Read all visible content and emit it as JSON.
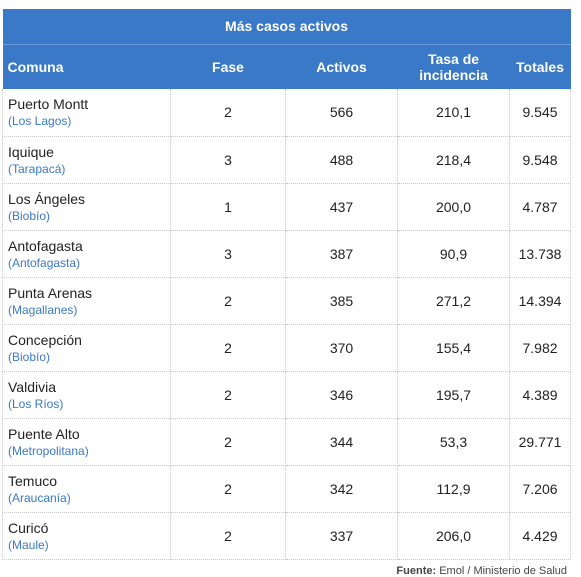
{
  "table": {
    "title": "Más casos activos",
    "headers": {
      "comuna": "Comuna",
      "fase": "Fase",
      "activos": "Activos",
      "tasa_line1": "Tasa de",
      "tasa_line2": "incidencia",
      "totales": "Totales"
    },
    "rows": [
      {
        "comuna": "Puerto Montt",
        "region": "(Los Lagos)",
        "fase": "2",
        "activos": "566",
        "tasa": "210,1",
        "totales": "9.545"
      },
      {
        "comuna": "Iquique",
        "region": "(Tarapacá)",
        "fase": "3",
        "activos": "488",
        "tasa": "218,4",
        "totales": "9.548"
      },
      {
        "comuna": "Los Ángeles",
        "region": "(Biobío)",
        "fase": "1",
        "activos": "437",
        "tasa": "200,0",
        "totales": "4.787"
      },
      {
        "comuna": "Antofagasta",
        "region": "(Antofagasta)",
        "fase": "3",
        "activos": "387",
        "tasa": "90,9",
        "totales": "13.738"
      },
      {
        "comuna": "Punta Arenas",
        "region": "(Magallanes)",
        "fase": "2",
        "activos": "385",
        "tasa": "271,2",
        "totales": "14.394"
      },
      {
        "comuna": "Concepción",
        "region": "(Biobío)",
        "fase": "2",
        "activos": "370",
        "tasa": "155,4",
        "totales": "7.982"
      },
      {
        "comuna": "Valdivia",
        "region": "(Los Ríos)",
        "fase": "2",
        "activos": "346",
        "tasa": "195,7",
        "totales": "4.389"
      },
      {
        "comuna": "Puente Alto",
        "region": "(Metropolitana)",
        "fase": "2",
        "activos": "344",
        "tasa": "53,3",
        "totales": "29.771"
      },
      {
        "comuna": "Temuco",
        "region": "(Araucanía)",
        "fase": "2",
        "activos": "342",
        "tasa": "112,9",
        "totales": "7.206"
      },
      {
        "comuna": "Curicó",
        "region": "(Maule)",
        "fase": "2",
        "activos": "337",
        "tasa": "206,0",
        "totales": "4.429"
      }
    ]
  },
  "source": {
    "label": "Fuente:",
    "text": "Emol / Ministerio de Salud"
  },
  "colors": {
    "header_bg": "#3a78c8",
    "region_text": "#3a78c8"
  }
}
